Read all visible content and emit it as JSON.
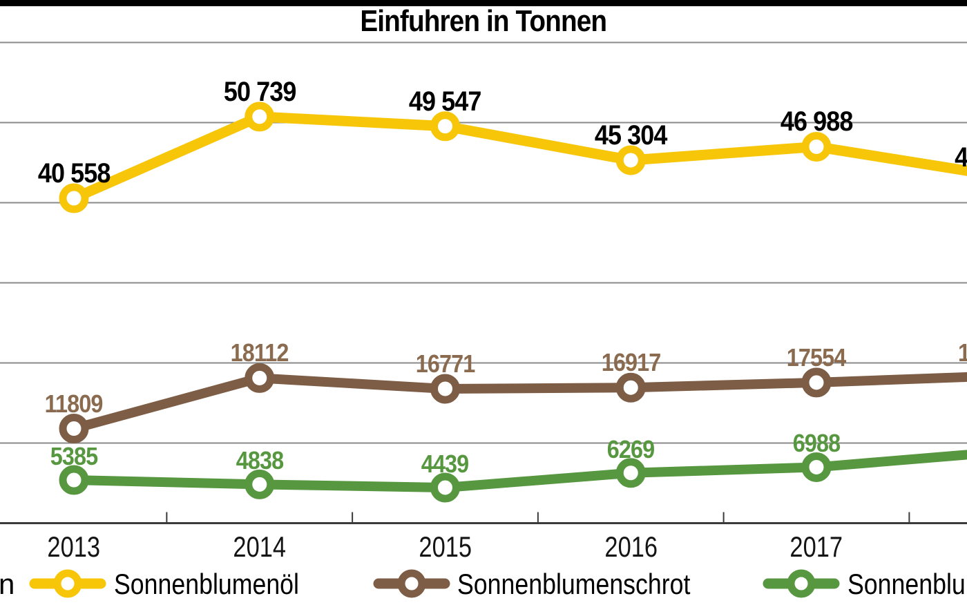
{
  "page": {
    "title": "Einfuhren in Tonnen"
  },
  "chart_data": {
    "type": "line",
    "title": "Einfuhren in Tonnen",
    "unit": "Tonnen",
    "categories": [
      "2013",
      "2014",
      "2015",
      "2016",
      "2017"
    ],
    "axes": {
      "x_tick_style": "ticks between year labels",
      "y_gridline_interval": 10000,
      "ylim": [
        0,
        60000
      ],
      "y_tick_labels_visible": false,
      "note": "left y-axis labels and the 2018 column are cropped off the image edges"
    },
    "series": [
      {
        "name": "Sonnenblumenöl",
        "color": "#F7C608",
        "label_color": "#000000",
        "values": [
          40558,
          50739,
          49547,
          45304,
          46988
        ],
        "labels": [
          "40 558",
          "50 739",
          "49 547",
          "45 304",
          "46 988"
        ]
      },
      {
        "name": "Sonnenblumenschrot",
        "color": "#7D5D45",
        "label_color": "#8A6B4F",
        "values": [
          11809,
          18112,
          16771,
          16917,
          17554
        ],
        "labels": [
          "11809",
          "18112",
          "16771",
          "16917",
          "17554"
        ]
      },
      {
        "name": "Sonnenblu",
        "color": "#579740",
        "label_color": "#579740",
        "values": [
          5385,
          4838,
          4439,
          6269,
          6988
        ],
        "labels": [
          "5385",
          "4838",
          "4439",
          "6269",
          "6988"
        ]
      }
    ],
    "cutoff_right": {
      "description": "lines continue to a cropped 2018 data point at the right edge",
      "estimated_edge_values": [
        43300,
        18400,
        8900
      ],
      "visible_label_fragments": [
        "4",
        "1",
        ""
      ]
    },
    "legend_position": "bottom"
  },
  "legend": {
    "cropped_left_fragment": "n",
    "items": [
      {
        "label": "Sonnenblumenöl",
        "color": "#F7C608"
      },
      {
        "label": "Sonnenblumenschrot",
        "color": "#7D5D45"
      },
      {
        "label": "Sonnenblu",
        "color": "#579740"
      }
    ]
  },
  "style_colors": {
    "gridline": "#8a8a8a",
    "axis": "#3a3a3a",
    "top_bar": "#000000"
  }
}
